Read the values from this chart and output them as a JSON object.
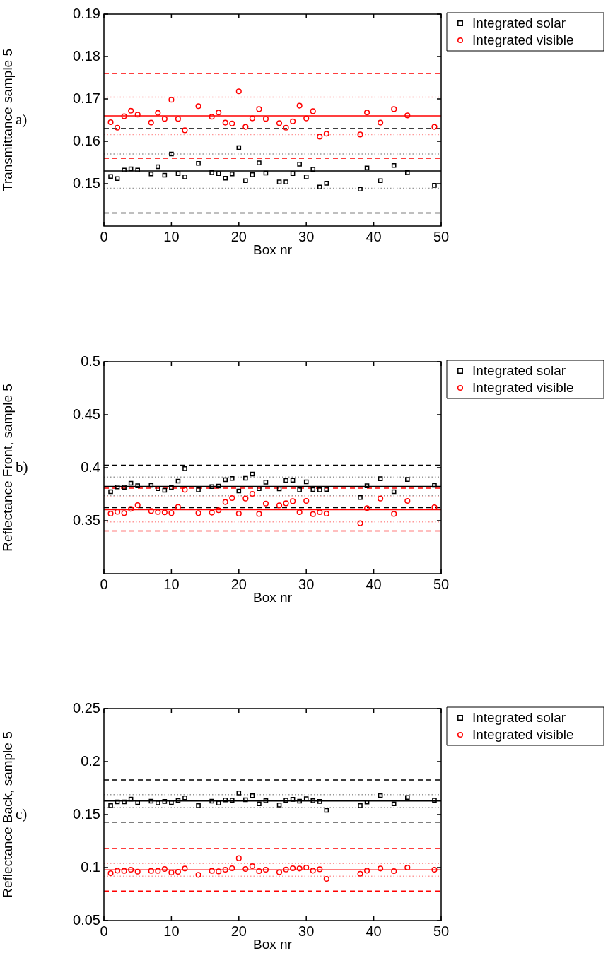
{
  "chart_data": [
    {
      "type": "scatter",
      "ylabel": "Transmittance sample 5",
      "xlabel": "Box nr",
      "annotations": [
        "a)"
      ],
      "legend": "top right",
      "grid": false,
      "xlim": [
        0,
        50
      ],
      "xticks": [
        0,
        10,
        20,
        30,
        40,
        50
      ],
      "ylim": [
        0.14,
        0.19
      ],
      "yticks": [
        0.15,
        0.16,
        0.17,
        0.18,
        0.19
      ],
      "x": [
        1,
        2,
        3,
        4,
        5,
        7,
        8,
        9,
        10,
        11,
        12,
        14,
        16,
        17,
        18,
        19,
        20,
        21,
        22,
        23,
        24,
        26,
        27,
        28,
        29,
        30,
        31,
        32,
        33,
        38,
        39,
        41,
        43,
        45,
        49
      ],
      "series": [
        {
          "name": "Integrated solar",
          "color": "#000000",
          "marker": "square",
          "values": [
            0.1517,
            0.1512,
            0.1532,
            0.1535,
            0.1532,
            0.1523,
            0.154,
            0.152,
            0.157,
            0.1524,
            0.1516,
            0.1548,
            0.1526,
            0.1524,
            0.1513,
            0.1523,
            0.1585,
            0.1507,
            0.1521,
            0.1549,
            0.1525,
            0.1504,
            0.1504,
            0.1524,
            0.1546,
            0.1516,
            0.1534,
            0.1492,
            0.1501,
            0.1487,
            0.1537,
            0.1507,
            0.1543,
            0.1526,
            0.1496
          ]
        },
        {
          "name": "Integrated visible",
          "color": "#ff0000",
          "marker": "circle",
          "values": [
            0.1645,
            0.1632,
            0.1659,
            0.1672,
            0.1663,
            0.1644,
            0.1667,
            0.1653,
            0.1698,
            0.1653,
            0.1626,
            0.1683,
            0.1658,
            0.1668,
            0.1644,
            0.1642,
            0.1718,
            0.1634,
            0.1654,
            0.1676,
            0.1653,
            0.1643,
            0.1632,
            0.1647,
            0.1684,
            0.1654,
            0.1671,
            0.1611,
            0.1618,
            0.1616,
            0.1668,
            0.1644,
            0.1676,
            0.1661,
            0.1634
          ]
        }
      ],
      "ref_lines": [
        {
          "axis": "y",
          "value": 0.176,
          "color": "#ff0000",
          "line_style": "dashed"
        },
        {
          "axis": "y",
          "value": 0.1704,
          "color": "#ff9999",
          "line_style": "dotted"
        },
        {
          "axis": "y",
          "value": 0.166,
          "color": "#ff0000",
          "line_style": "solid"
        },
        {
          "axis": "y",
          "value": 0.1616,
          "color": "#ff9999",
          "line_style": "dotted"
        },
        {
          "axis": "y",
          "value": 0.156,
          "color": "#ff0000",
          "line_style": "dashed"
        },
        {
          "axis": "y",
          "value": 0.163,
          "color": "#000000",
          "line_style": "dashed"
        },
        {
          "axis": "y",
          "value": 0.157,
          "color": "#999999",
          "line_style": "dotted"
        },
        {
          "axis": "y",
          "value": 0.153,
          "color": "#000000",
          "line_style": "solid"
        },
        {
          "axis": "y",
          "value": 0.1489,
          "color": "#999999",
          "line_style": "dotted"
        },
        {
          "axis": "y",
          "value": 0.1431,
          "color": "#000000",
          "line_style": "dashed"
        }
      ]
    },
    {
      "type": "scatter",
      "ylabel": "Reflectance Front, sample 5",
      "xlabel": "Box nr",
      "annotations": [
        "b)"
      ],
      "legend": "top right",
      "grid": false,
      "xlim": [
        0,
        50
      ],
      "xticks": [
        0,
        10,
        20,
        30,
        40,
        50
      ],
      "ylim": [
        0.3,
        0.5
      ],
      "yticks": [
        0.35,
        0.4,
        0.45,
        0.5
      ],
      "x": [
        1,
        2,
        3,
        4,
        5,
        7,
        8,
        9,
        10,
        11,
        12,
        14,
        16,
        17,
        18,
        19,
        20,
        21,
        22,
        23,
        24,
        26,
        27,
        28,
        29,
        30,
        31,
        32,
        33,
        38,
        39,
        41,
        43,
        45,
        49
      ],
      "series": [
        {
          "name": "Integrated solar",
          "color": "#000000",
          "marker": "square",
          "values": [
            0.3773,
            0.3818,
            0.3816,
            0.3853,
            0.3829,
            0.3833,
            0.3802,
            0.3787,
            0.3813,
            0.3873,
            0.3991,
            0.3791,
            0.3822,
            0.3827,
            0.3887,
            0.3898,
            0.378,
            0.39,
            0.394,
            0.3802,
            0.3864,
            0.38,
            0.388,
            0.3882,
            0.3791,
            0.3867,
            0.3793,
            0.3791,
            0.3796,
            0.3718,
            0.3829,
            0.3896,
            0.3773,
            0.3889,
            0.3833
          ]
        },
        {
          "name": "Integrated visible",
          "color": "#ff0000",
          "marker": "circle",
          "values": [
            0.3567,
            0.3584,
            0.3571,
            0.3611,
            0.3647,
            0.3591,
            0.3582,
            0.3578,
            0.3571,
            0.3629,
            0.3791,
            0.3571,
            0.3576,
            0.3598,
            0.3676,
            0.3713,
            0.3567,
            0.3709,
            0.3753,
            0.3564,
            0.3662,
            0.3644,
            0.3664,
            0.3684,
            0.358,
            0.3687,
            0.3562,
            0.358,
            0.3567,
            0.3476,
            0.3618,
            0.3709,
            0.3564,
            0.3687,
            0.3627
          ]
        }
      ],
      "ref_lines": [
        {
          "axis": "y",
          "value": 0.4024,
          "color": "#000000",
          "line_style": "dashed"
        },
        {
          "axis": "y",
          "value": 0.3911,
          "color": "#999999",
          "line_style": "dotted"
        },
        {
          "axis": "y",
          "value": 0.3824,
          "color": "#000000",
          "line_style": "solid"
        },
        {
          "axis": "y",
          "value": 0.3737,
          "color": "#999999",
          "line_style": "dotted"
        },
        {
          "axis": "y",
          "value": 0.3624,
          "color": "#000000",
          "line_style": "dashed"
        },
        {
          "axis": "y",
          "value": 0.3807,
          "color": "#ff0000",
          "line_style": "dashed"
        },
        {
          "axis": "y",
          "value": 0.3727,
          "color": "#ff9999",
          "line_style": "dotted"
        },
        {
          "axis": "y",
          "value": 0.3604,
          "color": "#ff0000",
          "line_style": "solid"
        },
        {
          "axis": "y",
          "value": 0.3489,
          "color": "#ff9999",
          "line_style": "dotted"
        },
        {
          "axis": "y",
          "value": 0.3404,
          "color": "#ff0000",
          "line_style": "dashed"
        }
      ]
    },
    {
      "type": "scatter",
      "ylabel": "Reflectance Back, sample 5",
      "xlabel": "Box nr",
      "annotations": [
        "c)"
      ],
      "legend": "top right",
      "grid": false,
      "xlim": [
        0,
        50
      ],
      "xticks": [
        0,
        10,
        20,
        30,
        40,
        50
      ],
      "ylim": [
        0.05,
        0.25
      ],
      "yticks": [
        0.05,
        0.1,
        0.15,
        0.2,
        0.25
      ],
      "x": [
        1,
        2,
        3,
        4,
        5,
        7,
        8,
        9,
        10,
        11,
        12,
        14,
        16,
        17,
        18,
        19,
        20,
        21,
        22,
        23,
        24,
        26,
        27,
        28,
        29,
        30,
        31,
        32,
        33,
        38,
        39,
        41,
        43,
        45,
        49
      ],
      "series": [
        {
          "name": "Integrated solar",
          "color": "#000000",
          "marker": "square",
          "values": [
            0.1584,
            0.162,
            0.162,
            0.1647,
            0.1613,
            0.1627,
            0.1611,
            0.1624,
            0.1613,
            0.1633,
            0.1658,
            0.1584,
            0.1627,
            0.1609,
            0.1638,
            0.1636,
            0.1704,
            0.164,
            0.1678,
            0.1602,
            0.1631,
            0.1591,
            0.1636,
            0.1644,
            0.1627,
            0.1649,
            0.1631,
            0.1624,
            0.154,
            0.1584,
            0.1618,
            0.168,
            0.1602,
            0.1662,
            0.1636
          ]
        },
        {
          "name": "Integrated visible",
          "color": "#ff0000",
          "marker": "circle",
          "values": [
            0.0947,
            0.0971,
            0.0969,
            0.098,
            0.0962,
            0.0969,
            0.0969,
            0.0987,
            0.0953,
            0.096,
            0.0991,
            0.0931,
            0.0969,
            0.0964,
            0.098,
            0.0993,
            0.1089,
            0.0987,
            0.1013,
            0.0967,
            0.098,
            0.0956,
            0.0982,
            0.0993,
            0.0991,
            0.1,
            0.0971,
            0.0984,
            0.0893,
            0.0942,
            0.0971,
            0.0991,
            0.0967,
            0.1,
            0.098
          ]
        }
      ],
      "ref_lines": [
        {
          "axis": "y",
          "value": 0.1827,
          "color": "#000000",
          "line_style": "dashed"
        },
        {
          "axis": "y",
          "value": 0.1689,
          "color": "#999999",
          "line_style": "dotted"
        },
        {
          "axis": "y",
          "value": 0.1629,
          "color": "#000000",
          "line_style": "solid"
        },
        {
          "axis": "y",
          "value": 0.1567,
          "color": "#999999",
          "line_style": "dotted"
        },
        {
          "axis": "y",
          "value": 0.1429,
          "color": "#000000",
          "line_style": "dashed"
        },
        {
          "axis": "y",
          "value": 0.118,
          "color": "#ff0000",
          "line_style": "dashed"
        },
        {
          "axis": "y",
          "value": 0.1038,
          "color": "#ff9999",
          "line_style": "dotted"
        },
        {
          "axis": "y",
          "value": 0.0978,
          "color": "#ff0000",
          "line_style": "solid"
        },
        {
          "axis": "y",
          "value": 0.0918,
          "color": "#ff9999",
          "line_style": "dotted"
        },
        {
          "axis": "y",
          "value": 0.0778,
          "color": "#ff0000",
          "line_style": "dashed"
        }
      ]
    }
  ]
}
